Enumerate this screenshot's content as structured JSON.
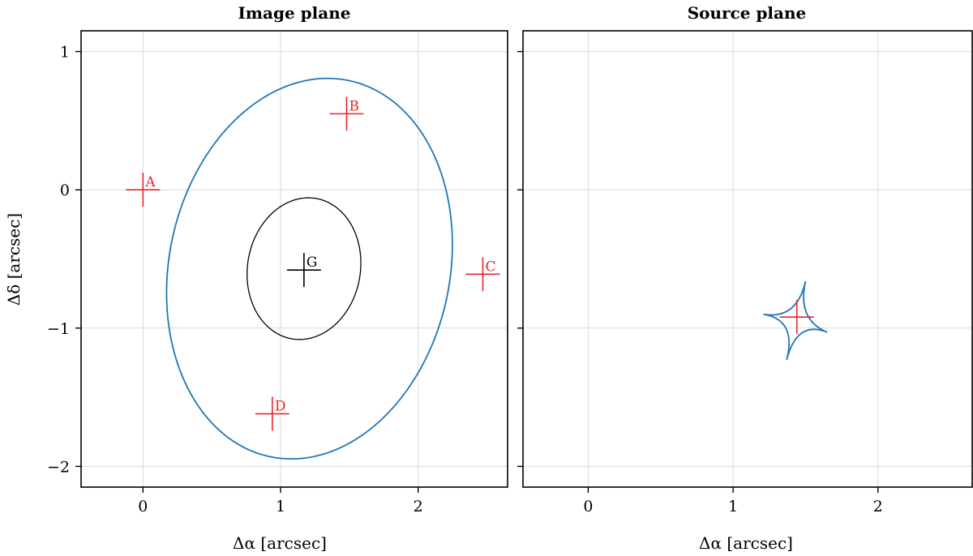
{
  "chart_data": [
    {
      "type": "scatter",
      "title": "Image plane",
      "xlabel": "Δα [arcsec]",
      "ylabel": "Δδ [arcsec]",
      "xlim": [
        -0.45,
        2.65
      ],
      "ylim": [
        -2.15,
        1.15
      ],
      "xticks": [
        0,
        1,
        2
      ],
      "xtick_labels": [
        "0",
        "1",
        "2"
      ],
      "yticks": [
        1,
        0,
        -1,
        -2
      ],
      "ytick_labels": [
        "1",
        "0",
        "−1",
        "−2"
      ],
      "grid": true,
      "points": [
        {
          "label": "A",
          "x": 0.0,
          "y": 0.0,
          "color": "#e8262a"
        },
        {
          "label": "B",
          "x": 1.48,
          "y": 0.55,
          "color": "#e8262a"
        },
        {
          "label": "C",
          "x": 2.47,
          "y": -0.61,
          "color": "#e8262a"
        },
        {
          "label": "D",
          "x": 0.94,
          "y": -1.62,
          "color": "#e8262a"
        },
        {
          "label": "G",
          "x": 1.17,
          "y": -0.58,
          "color": "#000000"
        }
      ],
      "curves": [
        {
          "kind": "ellipse",
          "cx": 1.21,
          "cy": -0.57,
          "rx": 1.02,
          "ry": 1.39,
          "rotation_deg": -12,
          "color": "#1f77b4"
        },
        {
          "kind": "ellipse",
          "cx": 1.17,
          "cy": -0.57,
          "rx": 0.41,
          "ry": 0.515,
          "rotation_deg": -10,
          "color": "#000000"
        }
      ]
    },
    {
      "type": "scatter",
      "title": "Source plane",
      "xlabel": "Δα [arcsec]",
      "ylabel": "",
      "xlim": [
        -0.45,
        2.65
      ],
      "ylim": [
        -2.15,
        1.15
      ],
      "xticks": [
        0,
        1,
        2
      ],
      "xtick_labels": [
        "0",
        "1",
        "2"
      ],
      "yticks": [
        1,
        0,
        -1,
        -2
      ],
      "ytick_labels": [],
      "grid": true,
      "points": [
        {
          "label": "",
          "x": 1.44,
          "y": -0.92,
          "color": "#e8262a"
        }
      ],
      "curves": [
        {
          "kind": "astroid",
          "color": "#1f77b4",
          "cusps": [
            {
              "x": 1.5,
              "y": -0.66
            },
            {
              "x": 1.65,
              "y": -1.03
            },
            {
              "x": 1.37,
              "y": -1.23
            },
            {
              "x": 1.21,
              "y": -0.9
            }
          ],
          "center": {
            "x": 1.44,
            "y": -0.94
          }
        }
      ]
    }
  ]
}
